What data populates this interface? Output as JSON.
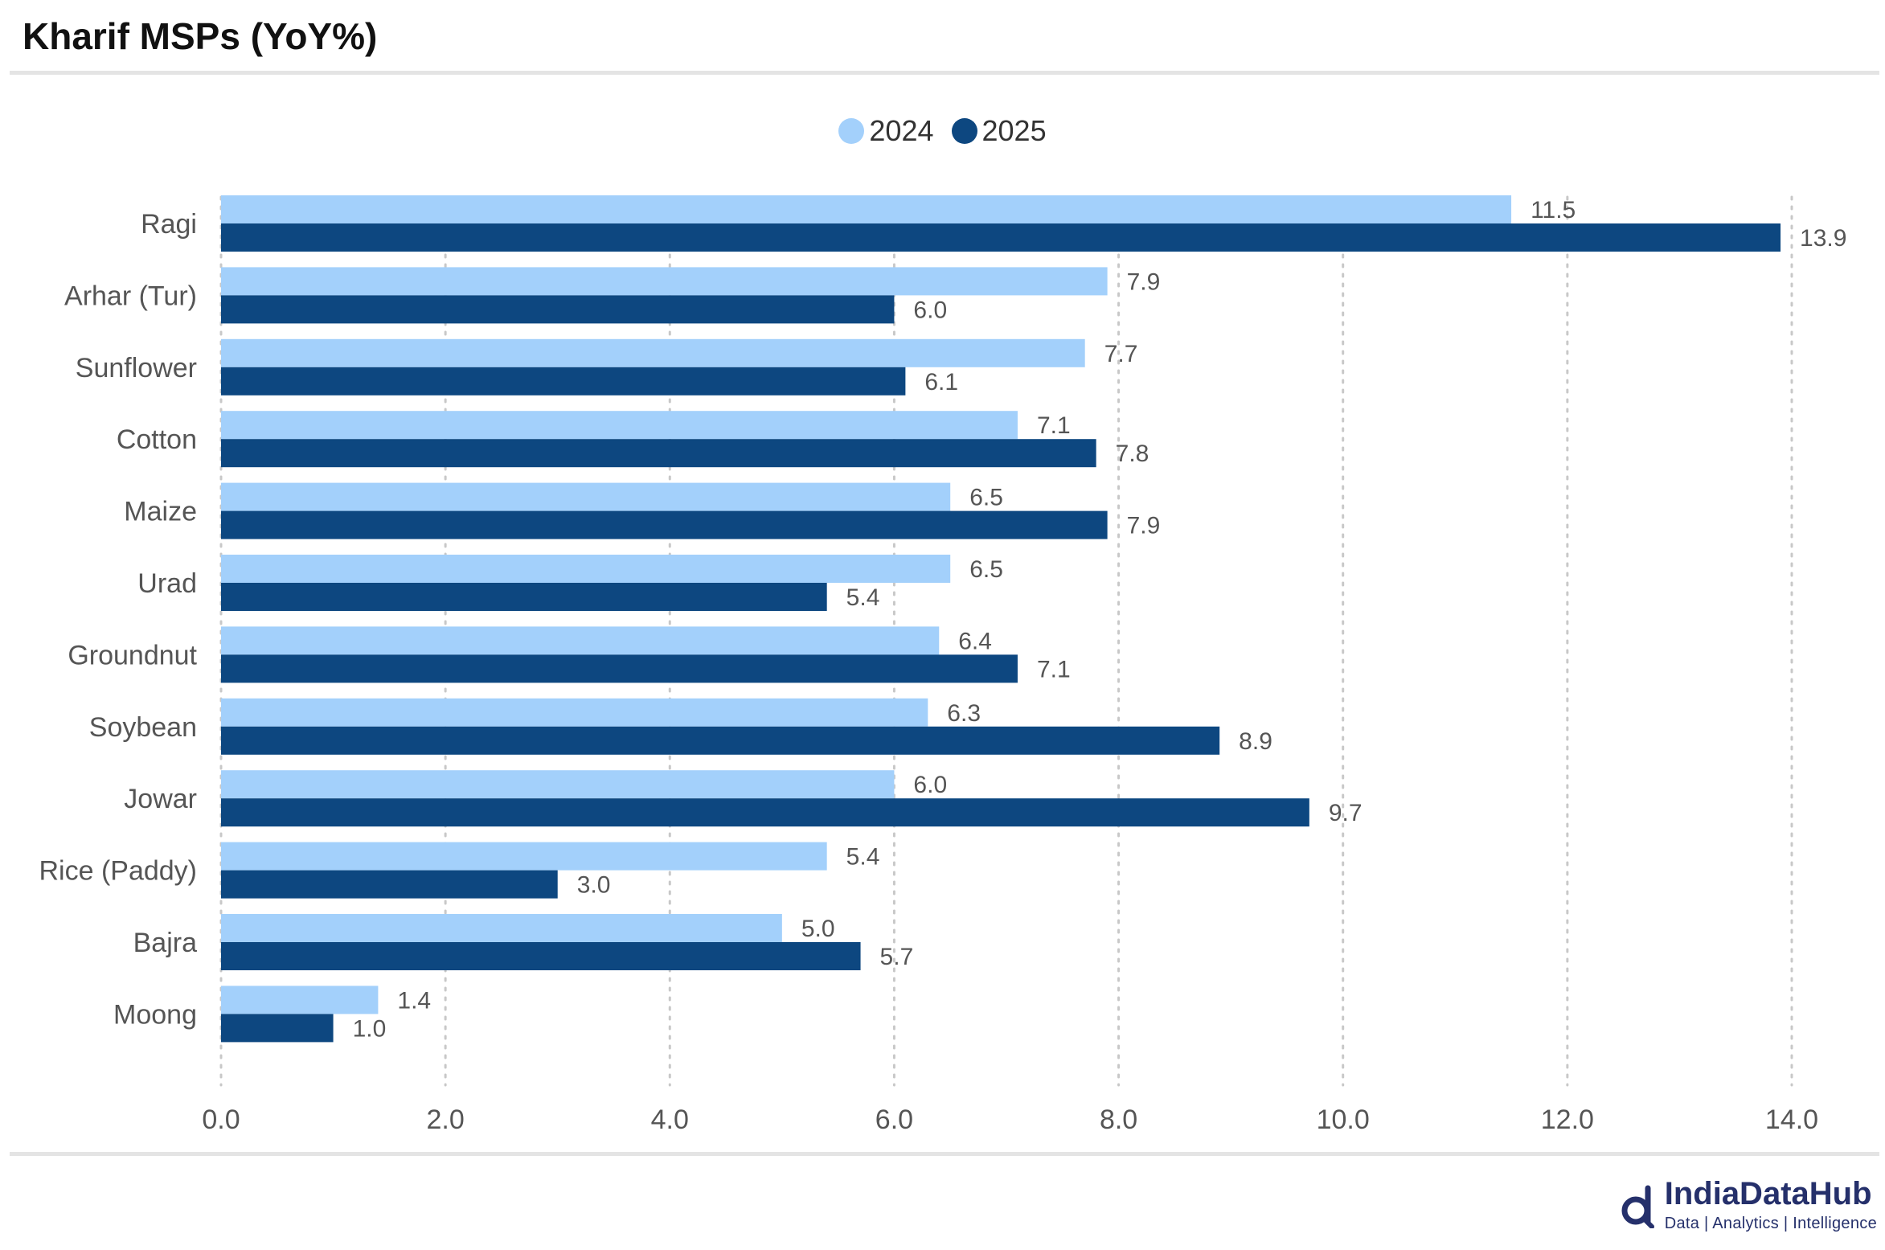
{
  "title": "Kharif MSPs (YoY%)",
  "colors": {
    "series_2024": "#a3d0fb",
    "series_2025": "#0d4780",
    "text": "#555555",
    "grid": "#c8c8c8"
  },
  "logo": {
    "name": "IndiaDataHub",
    "tagline": "Data | Analytics | Intelligence"
  },
  "chart_data": {
    "type": "bar",
    "orientation": "horizontal",
    "title": "Kharif MSPs (YoY%)",
    "categories": [
      "Ragi",
      "Arhar (Tur)",
      "Sunflower",
      "Cotton",
      "Maize",
      "Urad",
      "Groundnut",
      "Soybean",
      "Jowar",
      "Rice (Paddy)",
      "Bajra",
      "Moong"
    ],
    "series": [
      {
        "name": "2024",
        "color": "#a3d0fb",
        "values": [
          11.5,
          7.9,
          7.7,
          7.1,
          6.5,
          6.5,
          6.4,
          6.3,
          6.0,
          5.4,
          5.0,
          1.4
        ]
      },
      {
        "name": "2025",
        "color": "#0d4780",
        "values": [
          13.9,
          6.0,
          6.1,
          7.8,
          7.9,
          5.4,
          7.1,
          8.9,
          9.7,
          3.0,
          5.7,
          1.0
        ]
      }
    ],
    "xlim": [
      0,
      14
    ],
    "xticks": [
      "0.0",
      "2.0",
      "4.0",
      "6.0",
      "8.0",
      "10.0",
      "12.0",
      "14.0"
    ],
    "grid": "vertical dotted",
    "legend": "top-center",
    "data_labels": true
  }
}
